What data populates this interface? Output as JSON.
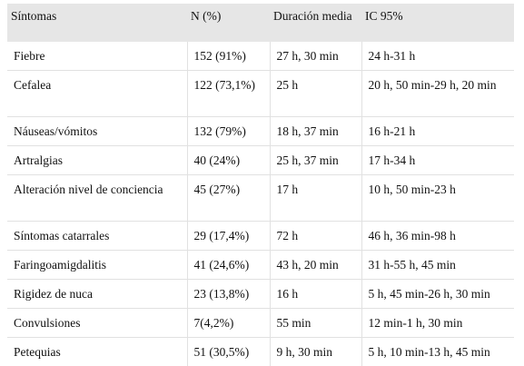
{
  "table": {
    "headers": [
      "Síntomas",
      "N (%)",
      "Duración media",
      "IC 95%"
    ],
    "rows": [
      [
        "Fiebre",
        "152 (91%)",
        "27 h, 30 min",
        "24 h-31 h"
      ],
      [
        "Cefalea",
        "122 (73,1%)",
        "25 h",
        "20 h, 50 min-29 h, 20 min"
      ],
      [
        "Náuseas/vómitos",
        "132 (79%)",
        "18 h, 37 min",
        "16 h-21 h"
      ],
      [
        "Artralgias",
        "40 (24%)",
        "25 h, 37 min",
        "17 h-34 h"
      ],
      [
        "Alteración nivel de conciencia",
        "45 (27%)",
        "17 h",
        "10 h, 50 min-23 h"
      ],
      [
        "Síntomas catarrales",
        "29 (17,4%)",
        "72 h",
        "46 h, 36 min-98 h"
      ],
      [
        "Faringoamigdalitis",
        "41 (24,6%)",
        "43 h, 20 min",
        "31 h-55 h, 45 min"
      ],
      [
        "Rigidez de nuca",
        "23 (13,8%)",
        "16 h",
        "5 h, 45 min-26 h, 30 min"
      ],
      [
        "Convulsiones",
        "7(4,2%)",
        "55 min",
        "12 min-1 h, 30 min"
      ],
      [
        "Petequias",
        "51 (30,5%)",
        "9 h, 30 min",
        "5 h, 10 min-13 h, 45 min"
      ]
    ]
  }
}
